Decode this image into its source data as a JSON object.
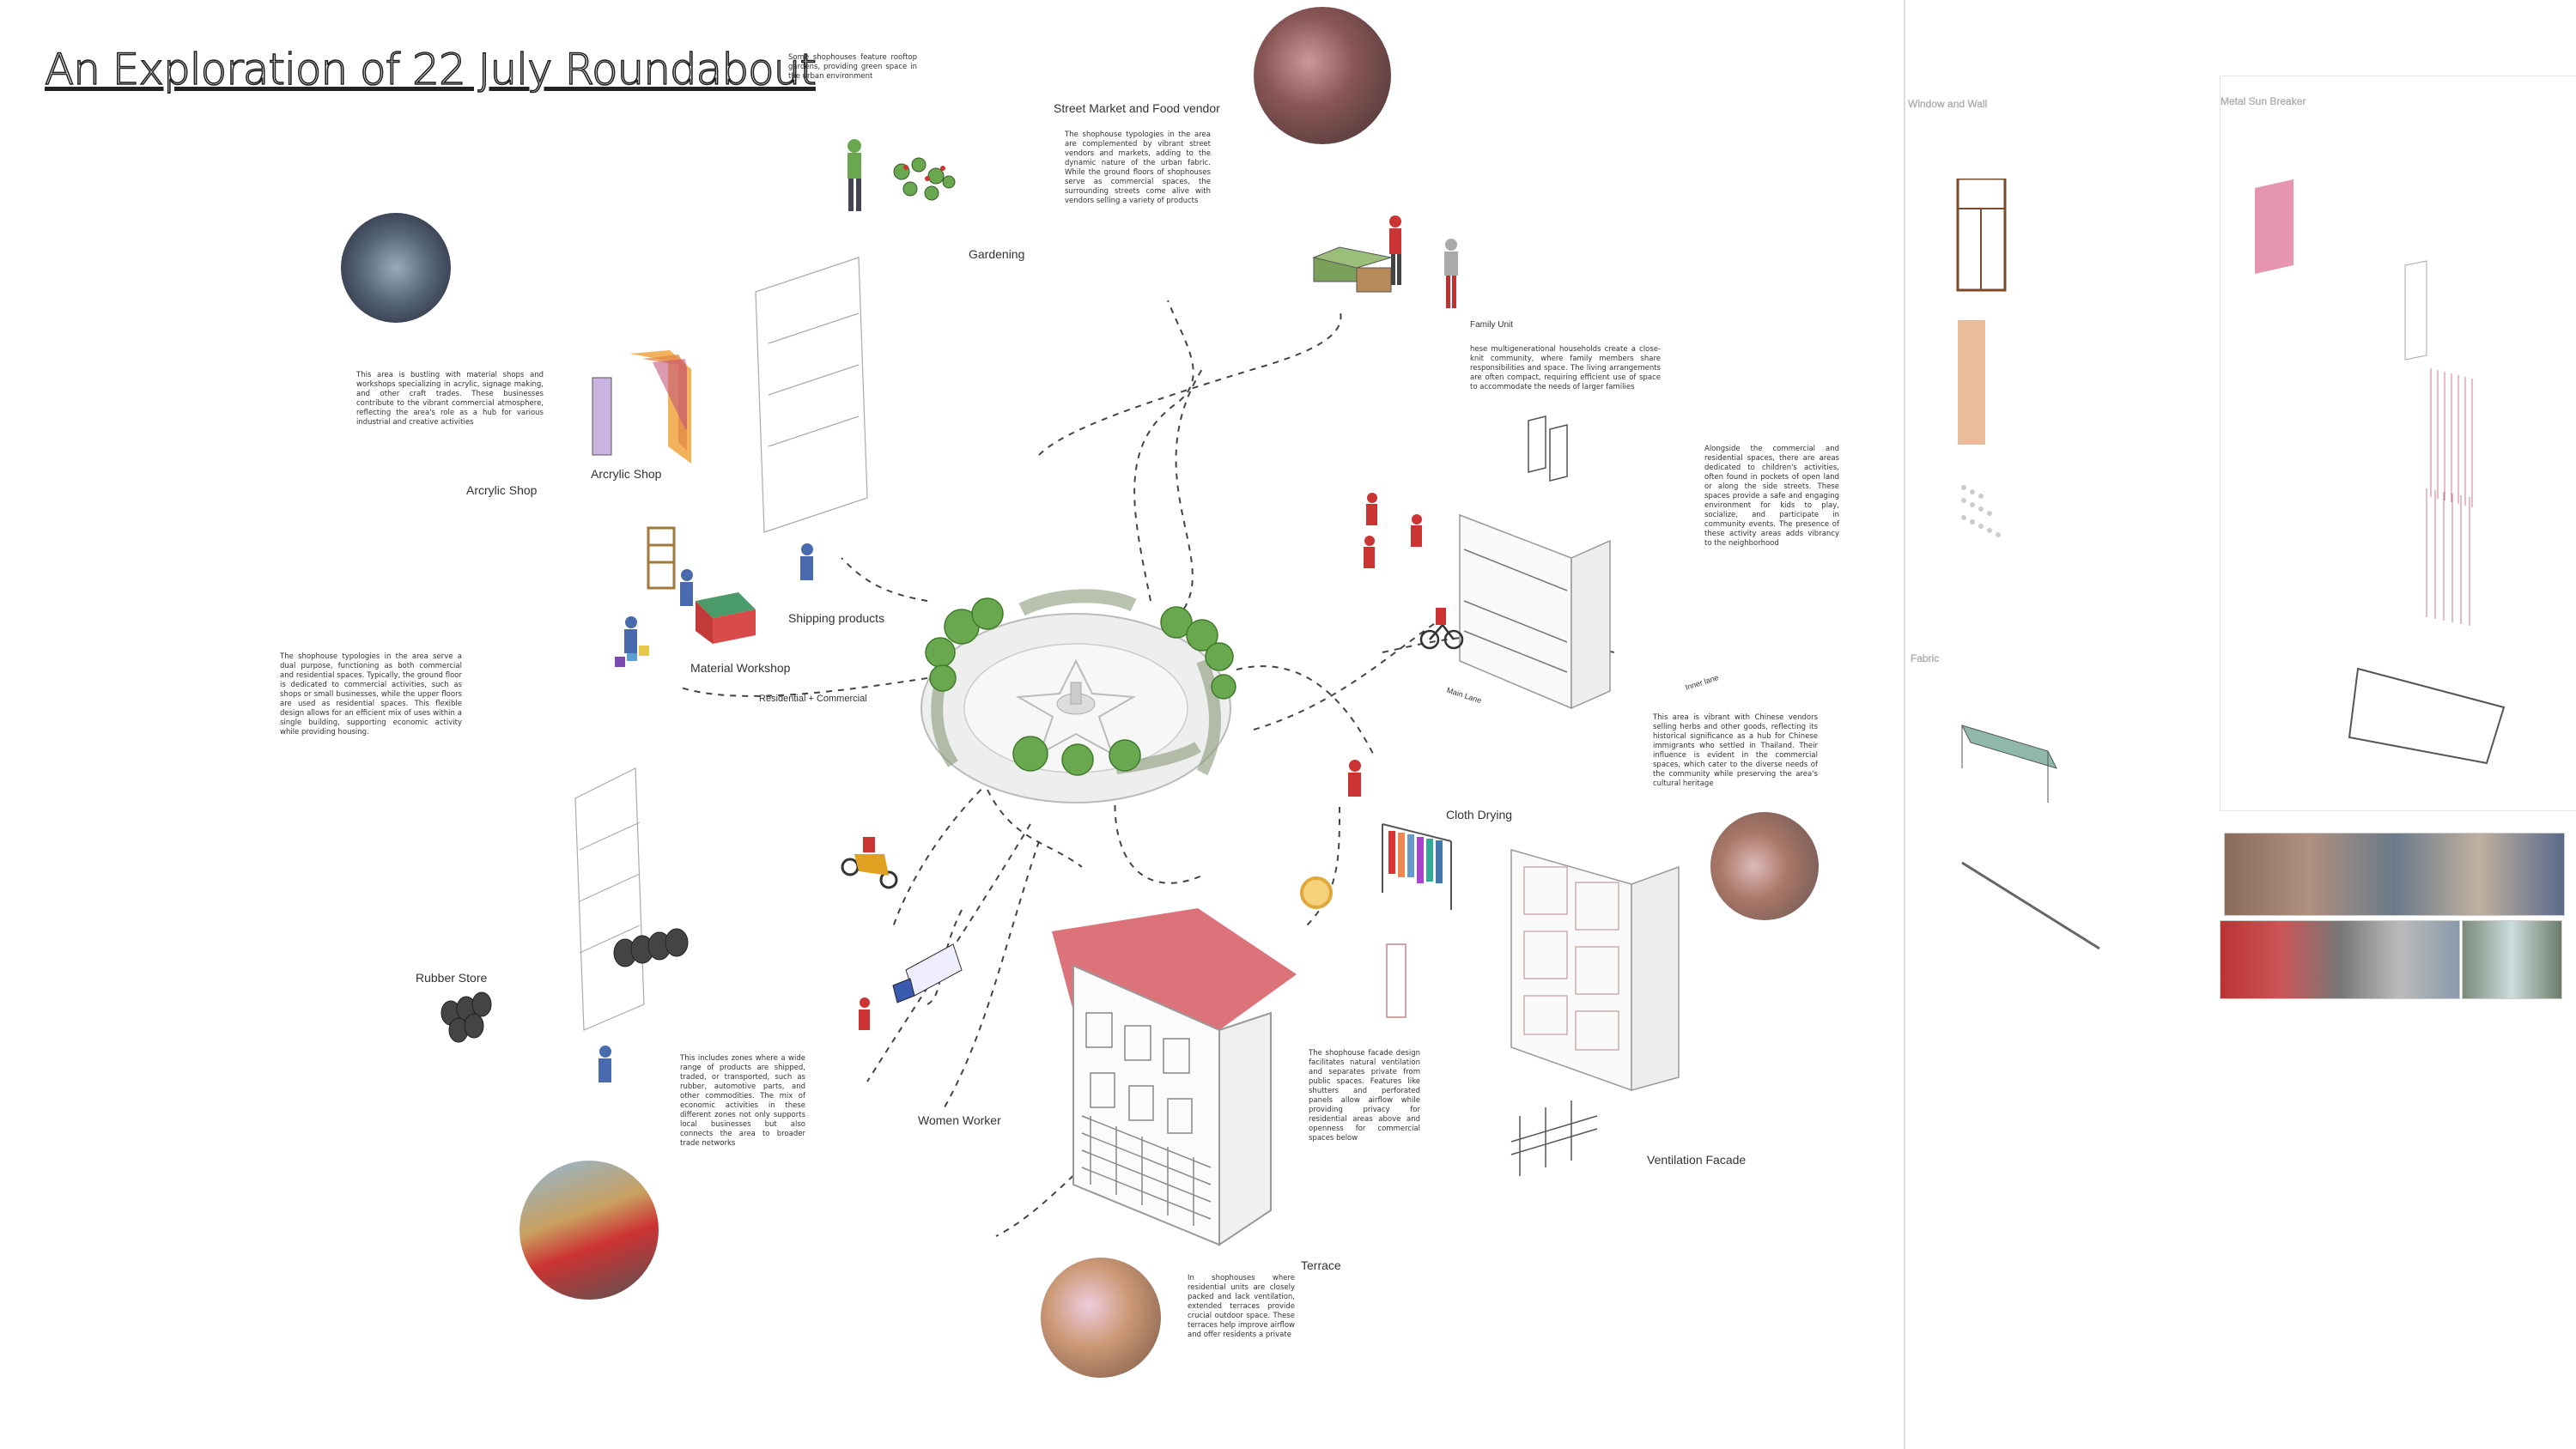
{
  "title": "An Exploration of 22 July Roundabout",
  "labels": {
    "gardening": "Gardening",
    "street_market": "Street Market and Food vendor",
    "family_unit": "Family Unit",
    "acrylic_shop_1": "Arcrylic Shop",
    "acrylic_shop_2": "Arcrylic Shop",
    "shipping_products": "Shipping products",
    "material_workshop": "Material Workshop",
    "residential_commercial": "Residential + Commercial",
    "main_lane": "Main Lane",
    "inner_lane": "Inner lane",
    "cloth_drying": "Cloth Drying",
    "rubber_store": "Rubber Store",
    "women_worker": "Women Worker",
    "terrace": "Terrace",
    "ventilation_facade": "Ventilation Facade"
  },
  "paragraphs": {
    "rooftop": "Some shophouses feature rooftop gardens, providing green space in the urban environment",
    "market": "The shophouse typologies in the area are complemented by vibrant street vendors and markets, adding to the dynamic nature of the urban fabric. While the ground floors of shophouses serve as commercial spaces, the surrounding streets come alive with vendors selling a variety of products",
    "family": "hese multigenerational households create a close-knit community, where family members share responsibilities and space. The living arrangements are often compact, requiring efficient use of space to accommodate the needs of larger families",
    "acrylic": "This area is bustling with material shops and workshops specializing in acrylic, signage making, and other craft trades. These businesses contribute to the vibrant commercial atmosphere, reflecting the area's role as a hub for various industrial and creative activities",
    "children": "Alongside the commercial and residential spaces, there are areas dedicated to children's activities, often found in pockets of open land or along the side streets. These spaces provide a safe and engaging environment for kids to play, socialize, and participate in community events. The presence of these activity areas adds vibrancy to the neighborhood",
    "shophouse": "The shophouse typologies in the area serve a dual purpose, functioning as both commercial and residential spaces. Typically, the ground floor is dedicated to commercial activities, such as shops or small businesses, while the upper floors are used as residential spaces. This flexible design allows for an efficient mix of uses within a single building, supporting economic activity while providing housing.",
    "chinese": "This area is vibrant with Chinese vendors selling herbs and other goods, reflecting its historical significance as a hub for Chinese immigrants who settled in Thailand. Their influence is evident in the commercial spaces, which cater to the diverse needs of the community while preserving the area's cultural heritage",
    "facade": "The shophouse facade design facilitates natural ventilation and separates private from public spaces. Features like shutters and perforated panels allow airflow while providing privacy for residential areas above and openness for commercial spaces below",
    "rubber": "This includes zones where a wide range of products are shipped, traded, or transported, such as rubber, automotive parts, and other commodities. The mix of economic activities in these different zones not only supports local businesses but also connects the area to broader trade networks",
    "terrace": "In shophouses where residential units are closely packed and lack ventilation, extended terraces provide crucial outdoor space. These terraces help improve airflow and offer residents a private"
  },
  "panels": {
    "windows_title": "Window and Wall",
    "metal_title": "Metal Sun Breaker",
    "fabric_title": "Fabric"
  },
  "colors": {
    "tree_green": "#6aa84f",
    "roof_red": "#d9646b",
    "paving": "#d8d8d8",
    "ink": "#333333"
  }
}
